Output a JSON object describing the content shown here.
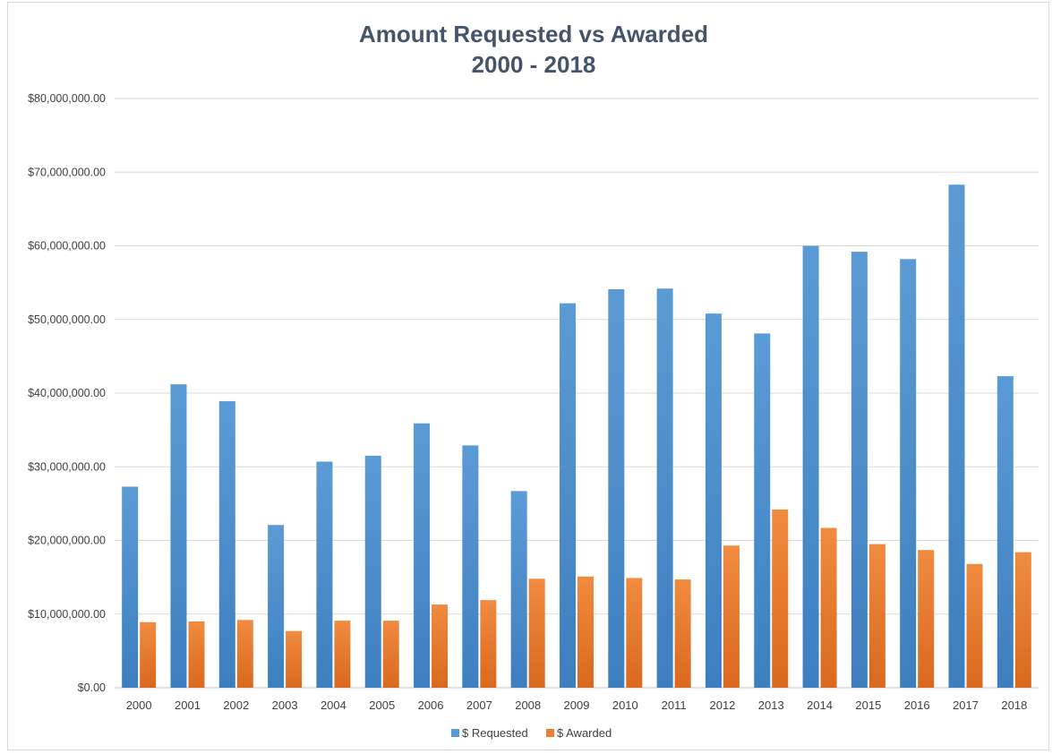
{
  "chart_data": {
    "type": "bar",
    "title": "Amount Requested vs Awarded",
    "subtitle": "2000 - 2018",
    "xlabel": "",
    "ylabel": "",
    "ylim": [
      0,
      80000000
    ],
    "yticks": [
      0,
      10000000,
      20000000,
      30000000,
      40000000,
      50000000,
      60000000,
      70000000,
      80000000
    ],
    "ytick_labels": [
      "$0.00",
      "$10,000,000.00",
      "$20,000,000.00",
      "$30,000,000.00",
      "$40,000,000.00",
      "$50,000,000.00",
      "$60,000,000.00",
      "$70,000,000.00",
      "$80,000,000.00"
    ],
    "grid": true,
    "legend_position": "bottom",
    "categories": [
      "2000",
      "2001",
      "2002",
      "2003",
      "2004",
      "2005",
      "2006",
      "2007",
      "2008",
      "2009",
      "2010",
      "2011",
      "2012",
      "2013",
      "2014",
      "2015",
      "2016",
      "2017",
      "2018"
    ],
    "series": [
      {
        "name": "$ Requested",
        "color": "#5b9bd5",
        "values": [
          27300000,
          41200000,
          38900000,
          22100000,
          30700000,
          31500000,
          35900000,
          32900000,
          26700000,
          52200000,
          54100000,
          54200000,
          50800000,
          48100000,
          60000000,
          59200000,
          58200000,
          68300000,
          42300000
        ]
      },
      {
        "name": "$ Awarded",
        "color": "#ed7d31",
        "values": [
          8900000,
          9000000,
          9200000,
          7700000,
          9100000,
          9100000,
          11300000,
          11900000,
          14800000,
          15100000,
          14900000,
          14700000,
          19300000,
          24200000,
          21700000,
          19500000,
          18700000,
          16800000,
          18400000
        ]
      }
    ]
  }
}
